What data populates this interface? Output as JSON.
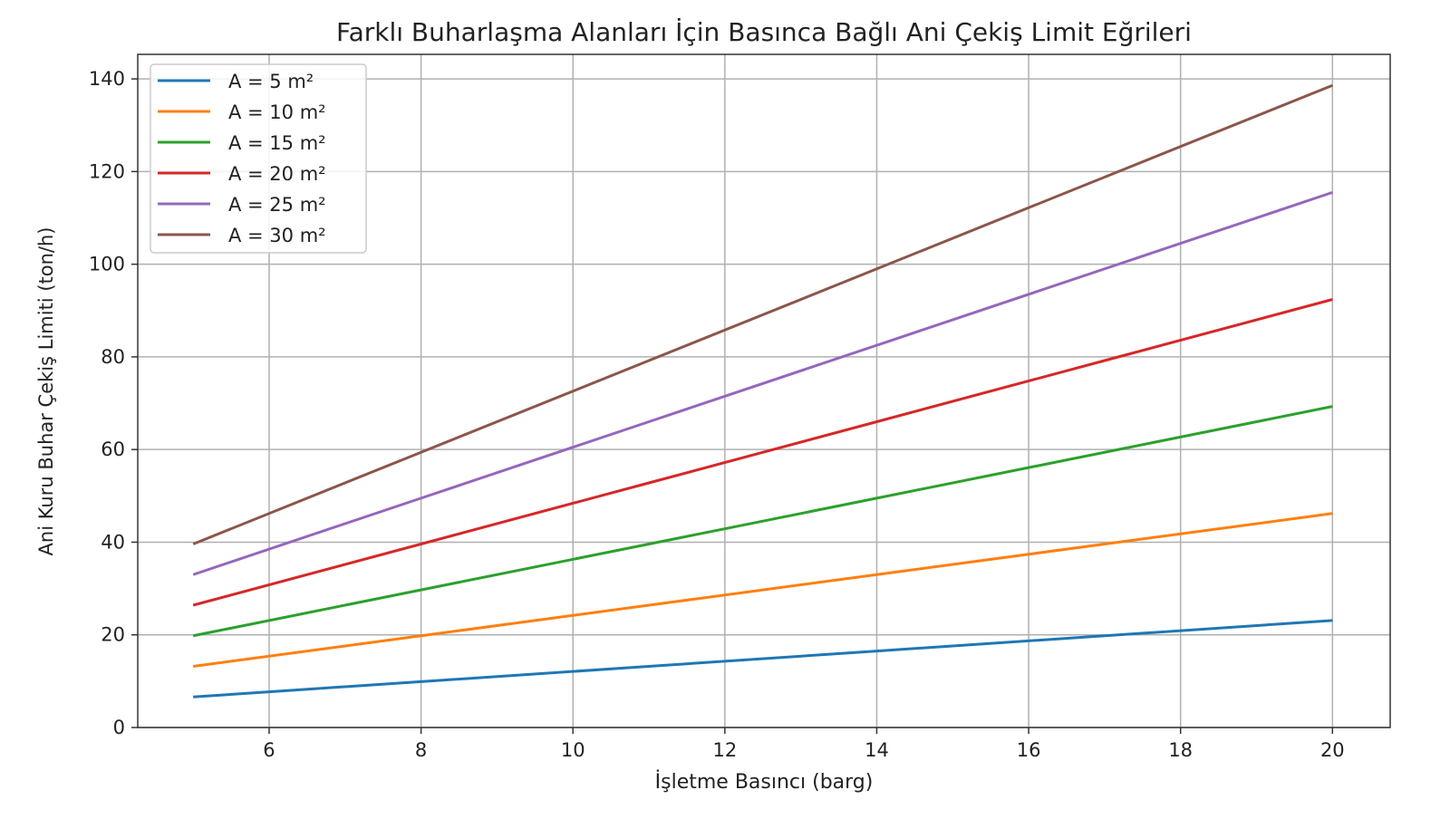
{
  "chart_data": {
    "type": "line",
    "title": "Farklı Buharlaşma Alanları İçin Basınca Bağlı Ani Çekiş Limit Eğrileri",
    "xlabel": "İşletme Basıncı (barg)",
    "ylabel": "Ani Kuru Buhar Çekiş Limiti (ton/h)",
    "xlim": [
      4.27,
      20.76
    ],
    "ylim": [
      0,
      145.3
    ],
    "xticks": [
      6,
      8,
      10,
      12,
      14,
      16,
      18,
      20
    ],
    "yticks": [
      0,
      20,
      40,
      60,
      80,
      100,
      120,
      140
    ],
    "grid": true,
    "legend_position": "top-left",
    "x": [
      5,
      8,
      11,
      14,
      17,
      20
    ],
    "series": [
      {
        "name": "A = 5 m²",
        "color": "#1f77b4",
        "values": [
          6.6,
          9.9,
          13.2,
          16.5,
          19.8,
          23.1
        ]
      },
      {
        "name": "A = 10 m²",
        "color": "#ff7f0e",
        "values": [
          13.2,
          19.8,
          26.4,
          33.0,
          39.6,
          46.2
        ]
      },
      {
        "name": "A = 15 m²",
        "color": "#2ca02c",
        "values": [
          19.8,
          29.7,
          39.6,
          49.5,
          59.4,
          69.3
        ]
      },
      {
        "name": "A = 20 m²",
        "color": "#d62728",
        "values": [
          26.4,
          39.6,
          52.8,
          66.0,
          79.2,
          92.4
        ]
      },
      {
        "name": "A = 25 m²",
        "color": "#9467bd",
        "values": [
          33.0,
          49.5,
          66.0,
          82.5,
          99.0,
          115.5
        ]
      },
      {
        "name": "A = 30 m²",
        "color": "#8c564b",
        "values": [
          39.6,
          59.4,
          79.2,
          99.0,
          118.8,
          138.6
        ]
      }
    ]
  }
}
